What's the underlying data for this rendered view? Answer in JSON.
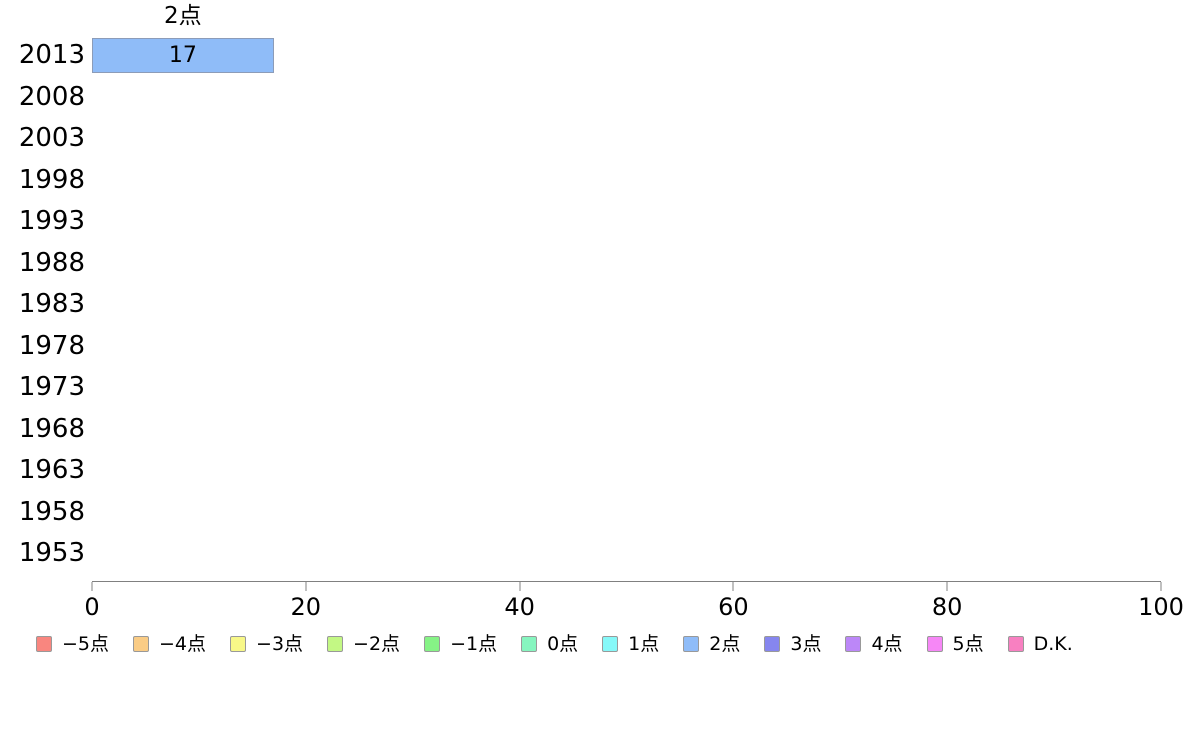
{
  "chart_data": {
    "type": "bar",
    "orientation": "horizontal",
    "title": "",
    "xlabel": "",
    "ylabel": "",
    "categories": [
      "2013",
      "2008",
      "2003",
      "1998",
      "1993",
      "1988",
      "1983",
      "1978",
      "1973",
      "1968",
      "1963",
      "1958",
      "1953"
    ],
    "xlim": [
      0,
      100
    ],
    "xticks": [
      "0",
      "20",
      "40",
      "60",
      "80",
      "100"
    ],
    "grid": "off",
    "legend_position": "bottom",
    "bars": [
      {
        "category": "2013",
        "series": "2点",
        "value": 17,
        "label": "17",
        "annotation": "2点",
        "color": "#8FBCF8"
      }
    ],
    "series": [
      {
        "name": "−5点",
        "color": "#F9867F"
      },
      {
        "name": "−4点",
        "color": "#FACC85"
      },
      {
        "name": "−3点",
        "color": "#F8F888"
      },
      {
        "name": "−2点",
        "color": "#C3F884"
      },
      {
        "name": "−1点",
        "color": "#86F386"
      },
      {
        "name": "0点",
        "color": "#86F5BF"
      },
      {
        "name": "1点",
        "color": "#86F8F8"
      },
      {
        "name": "2点",
        "color": "#8FBCF8"
      },
      {
        "name": "3点",
        "color": "#8686EF"
      },
      {
        "name": "4点",
        "color": "#BC87F8"
      },
      {
        "name": "5点",
        "color": "#F687F6"
      },
      {
        "name": "D.K.",
        "color": "#F880C1"
      }
    ]
  },
  "legend": {
    "items": [
      {
        "label": "−5点",
        "color": "#F9867F"
      },
      {
        "label": "−4点",
        "color": "#FACC85"
      },
      {
        "label": "−3点",
        "color": "#F8F888"
      },
      {
        "label": "−2点",
        "color": "#C3F884"
      },
      {
        "label": "−1点",
        "color": "#86F386"
      },
      {
        "label": "0点",
        "color": "#86F5BF"
      },
      {
        "label": "1点",
        "color": "#86F8F8"
      },
      {
        "label": "2点",
        "color": "#8FBCF8"
      },
      {
        "label": "3点",
        "color": "#8686EF"
      },
      {
        "label": "4点",
        "color": "#BC87F8"
      },
      {
        "label": "5点",
        "color": "#F687F6"
      },
      {
        "label": "D.K.",
        "color": "#F880C1"
      }
    ]
  },
  "colors": {
    "background": "#FFFFFF",
    "axis": "#808080",
    "bar_border": "#8C9CB8",
    "swatch_border": "#999999",
    "text": "#000000"
  }
}
